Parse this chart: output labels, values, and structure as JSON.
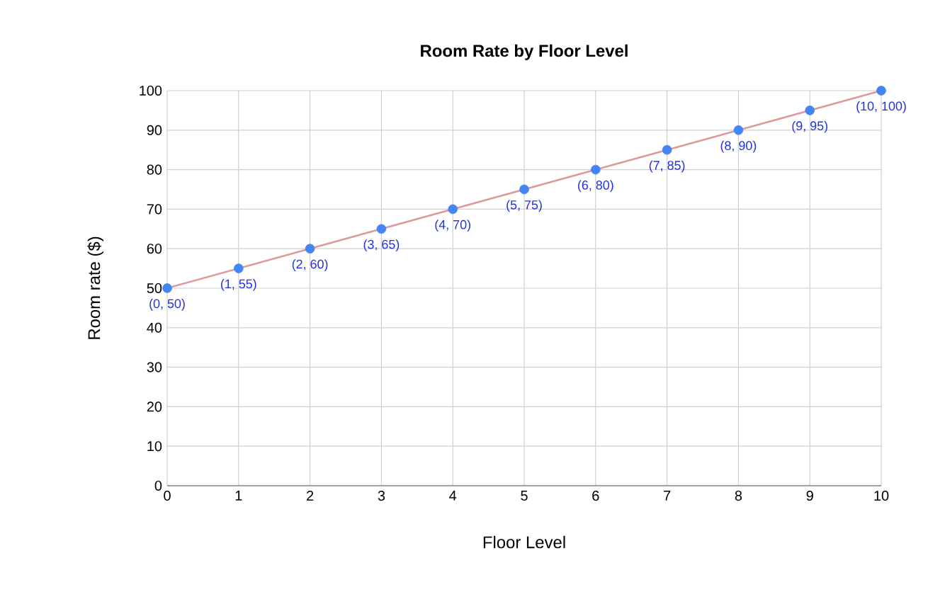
{
  "chart_data": {
    "type": "scatter",
    "title": "Room Rate by Floor Level",
    "xlabel": "Floor Level",
    "ylabel": "Room rate ($)",
    "xlim": [
      0,
      10
    ],
    "ylim": [
      0,
      100
    ],
    "xticks": [
      0,
      1,
      2,
      3,
      4,
      5,
      6,
      7,
      8,
      9,
      10
    ],
    "yticks": [
      0,
      10,
      20,
      30,
      40,
      50,
      60,
      70,
      80,
      90,
      100
    ],
    "grid": true,
    "marker": "circle",
    "series": [
      {
        "type": "line",
        "color": "#dc9a9a",
        "x": [
          0,
          10
        ],
        "values": [
          50,
          100
        ],
        "marker": "none",
        "line_style": "solid"
      },
      {
        "type": "scatter",
        "color": "#4285f4",
        "x": [
          0,
          1,
          2,
          3,
          4,
          5,
          6,
          7,
          8,
          9,
          10
        ],
        "values": [
          50,
          55,
          60,
          65,
          70,
          75,
          80,
          85,
          90,
          95,
          100
        ],
        "value_labels": [
          "(0, 50)",
          "(1, 55)",
          "(2, 60)",
          "(3, 65)",
          "(4, 70)",
          "(5, 75)",
          "(6, 80)",
          "(7, 85)",
          "(8, 90)",
          "(9, 95)",
          "(10, 100)"
        ]
      }
    ]
  }
}
